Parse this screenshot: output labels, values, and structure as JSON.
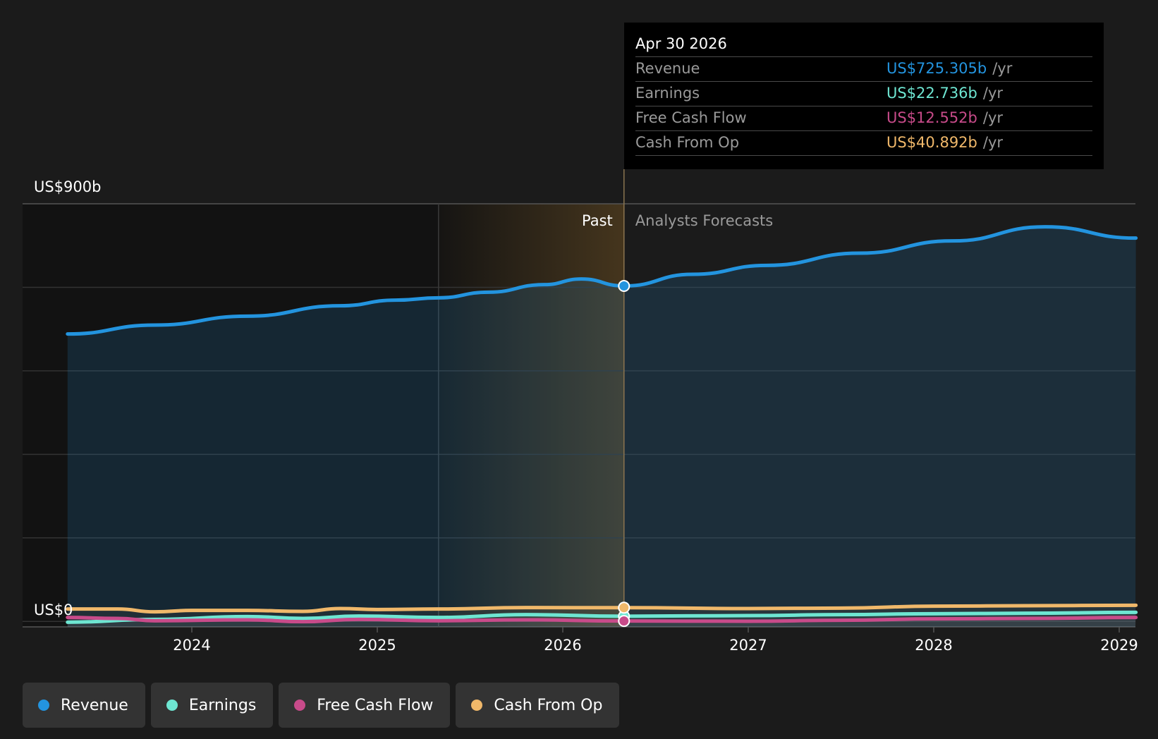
{
  "colors": {
    "revenue": "#2394df",
    "earnings": "#6ee6d2",
    "free_cash_flow": "#c84b8a",
    "cash_from_op": "#f0b86a",
    "past_highlight": "#c8903a"
  },
  "tooltip": {
    "date": "Apr 30 2026",
    "rows": [
      {
        "label": "Revenue",
        "value": "US$725.305b",
        "unit": "/yr",
        "color": "#2394df"
      },
      {
        "label": "Earnings",
        "value": "US$22.736b",
        "unit": "/yr",
        "color": "#6ee6d2"
      },
      {
        "label": "Free Cash Flow",
        "value": "US$12.552b",
        "unit": "/yr",
        "color": "#c84b8a"
      },
      {
        "label": "Cash From Op",
        "value": "US$40.892b",
        "unit": "/yr",
        "color": "#f0b86a"
      }
    ]
  },
  "legend": [
    {
      "label": "Revenue",
      "color": "#2394df"
    },
    {
      "label": "Earnings",
      "color": "#6ee6d2"
    },
    {
      "label": "Free Cash Flow",
      "color": "#c84b8a"
    },
    {
      "label": "Cash From Op",
      "color": "#f0b86a"
    }
  ],
  "chart_data": {
    "type": "area",
    "y_label_top": "US$900b",
    "y_label_bottom": "US$0",
    "ylim": [
      0,
      900
    ],
    "xlim": [
      2023.3,
      2029.09
    ],
    "x_ticks": [
      2024,
      2025,
      2026,
      2027,
      2028,
      2029
    ],
    "x_tick_labels": [
      "2024",
      "2025",
      "2026",
      "2027",
      "2028",
      "2029"
    ],
    "past_label": "Past",
    "forecast_label": "Analysts Forecasts",
    "past_shade_start": 2025.33,
    "divider_x": 2026.33,
    "grid": true,
    "legend_position": "bottom-left",
    "series": [
      {
        "name": "Revenue",
        "key": "revenue",
        "points": [
          [
            2023.33,
            623
          ],
          [
            2023.8,
            642
          ],
          [
            2024.3,
            661
          ],
          [
            2024.8,
            683
          ],
          [
            2025.1,
            695
          ],
          [
            2025.33,
            700
          ],
          [
            2025.6,
            712
          ],
          [
            2025.9,
            728
          ],
          [
            2026.1,
            740
          ],
          [
            2026.33,
            725.3
          ],
          [
            2026.7,
            750
          ],
          [
            2027.1,
            769
          ],
          [
            2027.6,
            795
          ],
          [
            2028.1,
            821
          ],
          [
            2028.6,
            851
          ],
          [
            2029.09,
            827
          ]
        ]
      },
      {
        "name": "Earnings",
        "key": "earnings",
        "points": [
          [
            2023.33,
            10
          ],
          [
            2023.8,
            16
          ],
          [
            2024.3,
            22
          ],
          [
            2024.6,
            18
          ],
          [
            2024.9,
            23
          ],
          [
            2025.33,
            20
          ],
          [
            2025.8,
            26
          ],
          [
            2026.33,
            22.7
          ],
          [
            2027.0,
            24
          ],
          [
            2027.5,
            26
          ],
          [
            2028.0,
            28
          ],
          [
            2028.5,
            29
          ],
          [
            2029.09,
            31
          ]
        ]
      },
      {
        "name": "Free Cash Flow",
        "key": "free_cash_flow",
        "points": [
          [
            2023.33,
            20
          ],
          [
            2023.6,
            18
          ],
          [
            2023.8,
            13
          ],
          [
            2024.3,
            15
          ],
          [
            2024.6,
            11
          ],
          [
            2024.9,
            16
          ],
          [
            2025.33,
            13
          ],
          [
            2025.8,
            15
          ],
          [
            2026.33,
            12.55
          ],
          [
            2027.0,
            12
          ],
          [
            2027.5,
            14
          ],
          [
            2028.0,
            17
          ],
          [
            2028.5,
            18
          ],
          [
            2029.09,
            20
          ]
        ]
      },
      {
        "name": "Cash From Op",
        "key": "cash_from_op",
        "points": [
          [
            2023.33,
            38
          ],
          [
            2023.6,
            38
          ],
          [
            2023.8,
            32
          ],
          [
            2024.0,
            35
          ],
          [
            2024.3,
            35
          ],
          [
            2024.6,
            33
          ],
          [
            2024.8,
            39
          ],
          [
            2025.0,
            37
          ],
          [
            2025.33,
            38
          ],
          [
            2025.8,
            41
          ],
          [
            2026.33,
            40.9
          ],
          [
            2027.0,
            39
          ],
          [
            2027.5,
            40
          ],
          [
            2028.0,
            44
          ],
          [
            2028.5,
            45
          ],
          [
            2029.09,
            46
          ]
        ]
      }
    ]
  }
}
